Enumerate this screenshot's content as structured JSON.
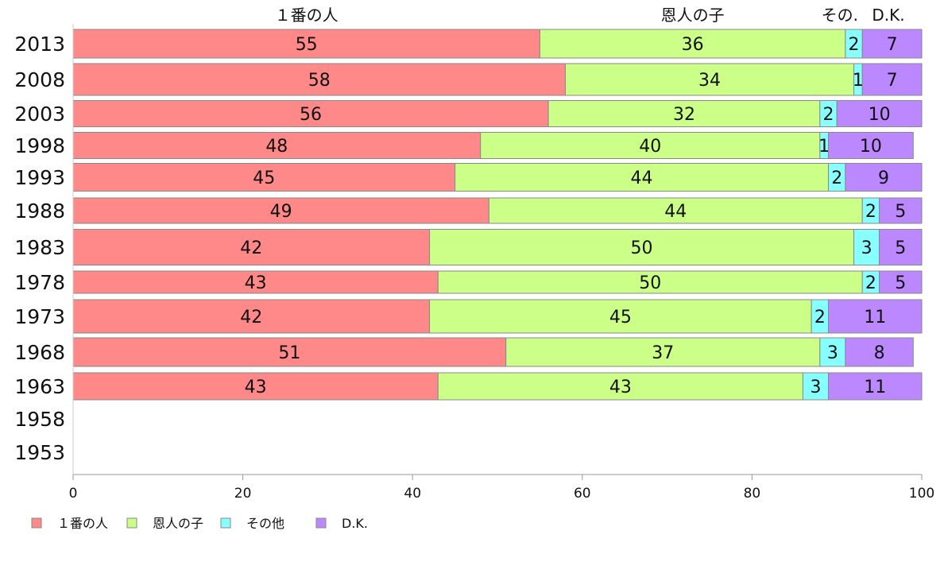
{
  "chart_data": {
    "type": "bar",
    "orientation": "horizontal",
    "stacked": true,
    "categories": [
      "2013",
      "2008",
      "2003",
      "1998",
      "1993",
      "1988",
      "1983",
      "1978",
      "1973",
      "1968",
      "1963",
      "1958",
      "1953"
    ],
    "series": [
      {
        "name": "１番の人",
        "header": "１番の人",
        "color": "#ff8888",
        "values": [
          55,
          58,
          56,
          48,
          45,
          49,
          42,
          43,
          42,
          51,
          43,
          null,
          null
        ]
      },
      {
        "name": "恩人の子",
        "header": "恩人の子",
        "color": "#ccff88",
        "values": [
          36,
          34,
          32,
          40,
          44,
          44,
          50,
          50,
          45,
          37,
          43,
          null,
          null
        ]
      },
      {
        "name": "その他",
        "header": "その.",
        "color": "#88ffff",
        "values": [
          2,
          1,
          2,
          1,
          2,
          2,
          3,
          2,
          2,
          3,
          3,
          null,
          null
        ]
      },
      {
        "name": "D.K.",
        "header": "D.K.",
        "color": "#bb88ff",
        "values": [
          7,
          7,
          10,
          10,
          9,
          5,
          5,
          5,
          11,
          8,
          11,
          null,
          null
        ]
      }
    ],
    "xlim": [
      0,
      100
    ],
    "xticks": [
      0,
      20,
      40,
      60,
      80,
      100
    ],
    "legend_position": "bottom-left",
    "grid": false
  }
}
